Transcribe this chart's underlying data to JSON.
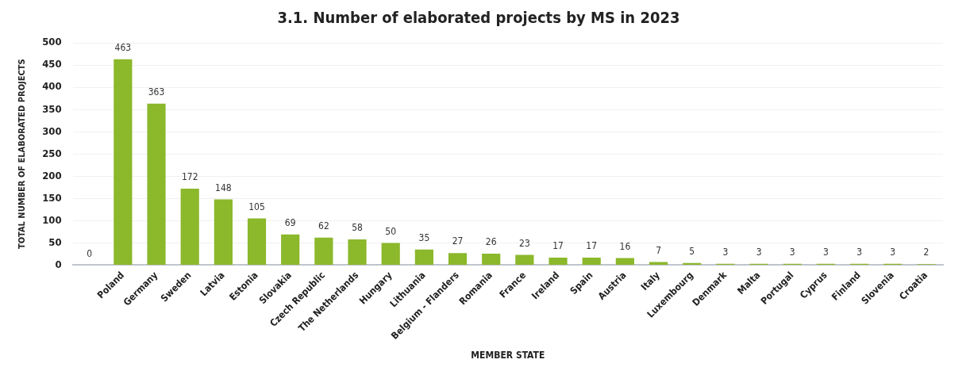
{
  "chart_data": {
    "type": "bar",
    "title": "3.1. Number of elaborated projects by MS in 2023",
    "xlabel": "MEMBER STATE",
    "ylabel": "TOTAL NUMBER OF ELABORATED PROJECTS",
    "categories": [
      null,
      "Poland",
      "Germany",
      "Sweden",
      "Latvia",
      "Estonia",
      "Slovakia",
      "Czech Republic",
      "The Netherlands",
      "Hungary",
      "Lithuania",
      "Belgium - Flanders",
      "Romania",
      "France",
      "Ireland",
      "Spain",
      "Austria",
      "Italy",
      "Luxembourg",
      "Denmark",
      "Malta",
      "Portugal",
      "Cyprus",
      "Finland",
      "Slovenia",
      "Croatia"
    ],
    "values": [
      0,
      463,
      363,
      172,
      148,
      105,
      69,
      62,
      58,
      50,
      35,
      27,
      26,
      23,
      17,
      17,
      16,
      7,
      5,
      3,
      3,
      3,
      3,
      3,
      3,
      2
    ],
    "color": "#8cb82b",
    "ylim": [
      0,
      500
    ],
    "yticks": [
      0,
      50,
      100,
      150,
      200,
      250,
      300,
      350,
      400,
      450,
      500
    ],
    "grid": "y",
    "data_labels": true
  }
}
